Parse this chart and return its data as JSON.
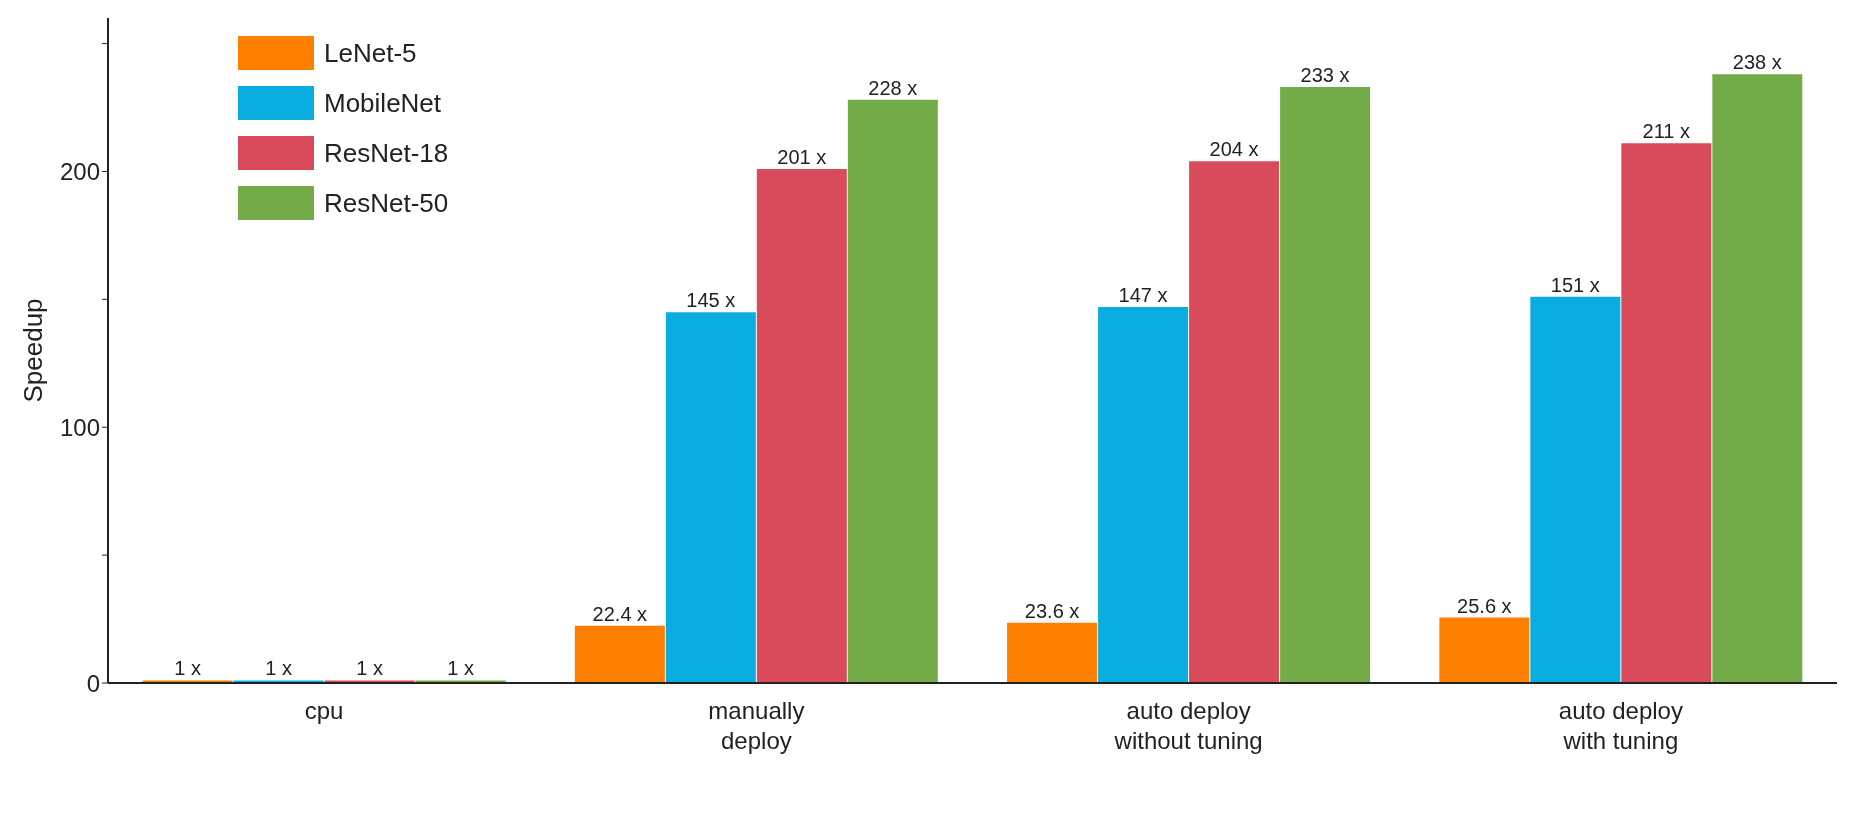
{
  "chart_data": {
    "type": "bar",
    "ylabel": "Speedup",
    "categories": [
      "cpu",
      "manually\ndeploy",
      "auto deploy\nwithout tuning",
      "auto deploy\nwith tuning"
    ],
    "series": [
      {
        "name": "LeNet-5",
        "color": "#ff7f00",
        "values": [
          1,
          22.4,
          23.6,
          25.6
        ],
        "value_labels": [
          "1 x",
          "22.4 x",
          "23.6 x",
          "25.6 x"
        ]
      },
      {
        "name": "MobileNet",
        "color": "#0aade0",
        "values": [
          1,
          145,
          147,
          151
        ],
        "value_labels": [
          "1 x",
          "145 x",
          "147 x",
          "151 x"
        ]
      },
      {
        "name": "ResNet-18",
        "color": "#d94a5a",
        "values": [
          1,
          201,
          204,
          211
        ],
        "value_labels": [
          "1 x",
          "201 x",
          "204 x",
          "211 x"
        ]
      },
      {
        "name": "ResNet-50",
        "color": "#72ab48",
        "values": [
          1,
          228,
          233,
          238
        ],
        "value_labels": [
          "1 x",
          "228 x",
          "233 x",
          "238 x"
        ]
      }
    ],
    "ylim": [
      0,
      260
    ],
    "yticks": [
      0,
      {
        "value": 50,
        "label": null
      },
      100,
      {
        "value": 150,
        "label": null
      },
      200,
      {
        "value": 250,
        "label": null
      }
    ],
    "grid": false,
    "legend": "top left"
  }
}
